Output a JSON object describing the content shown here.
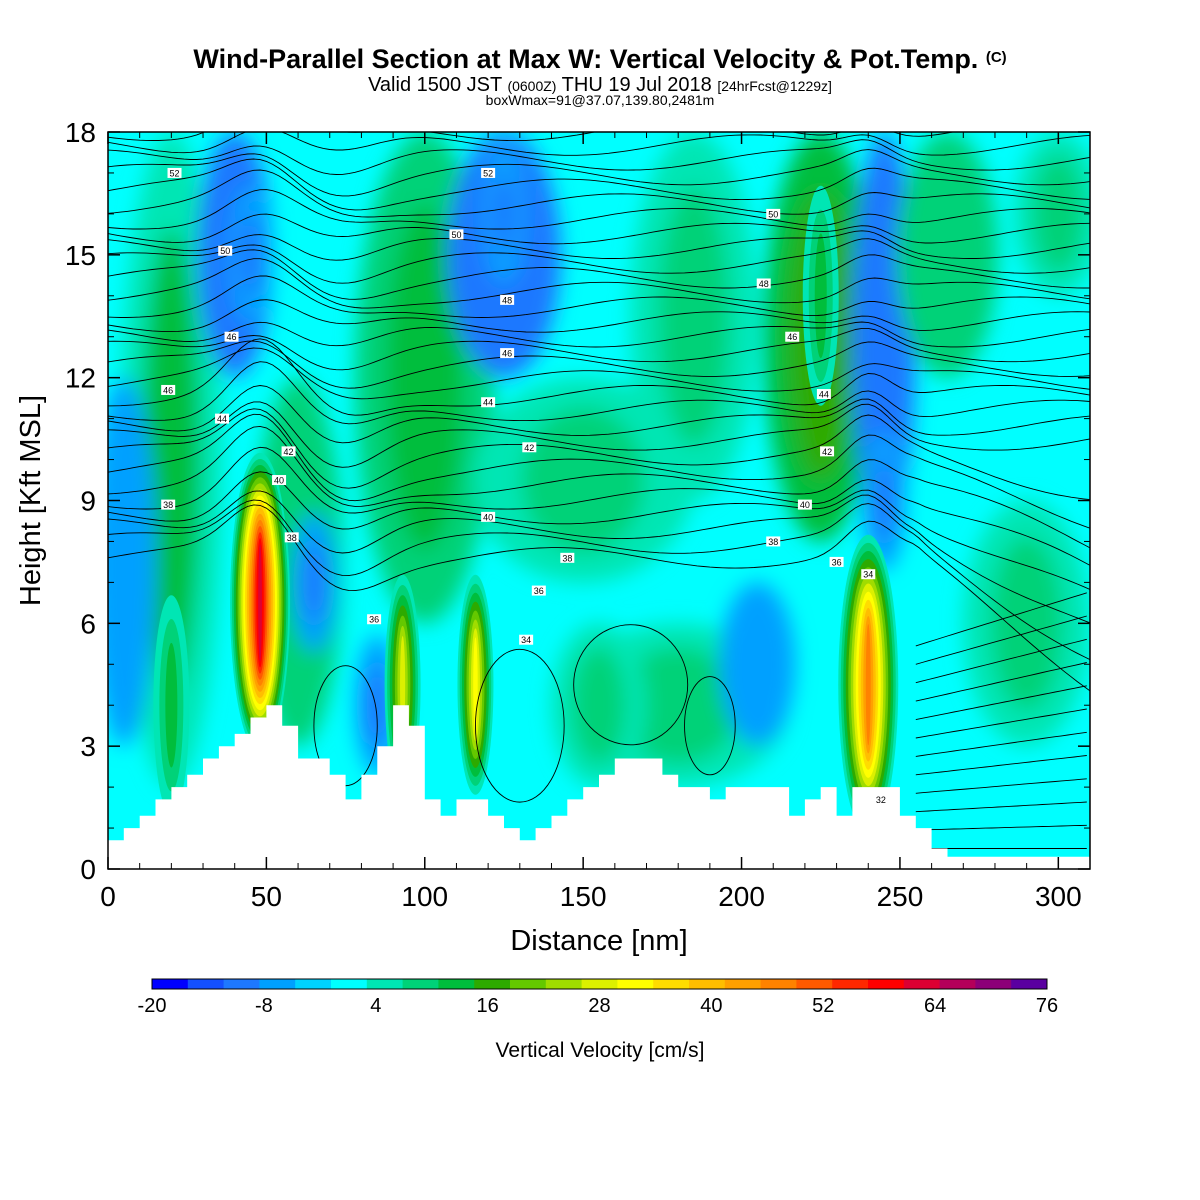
{
  "title": {
    "main": "Wind-Parallel Section at Max W: Vertical Velocity & Pot.Temp.",
    "main_tag": "(C)",
    "valid_prefix": "Valid 1500 JST",
    "valid_utc": "(0600Z)",
    "valid_date": "THU 19 Jul 2018",
    "forecast": "[24hrFcst@1229z]",
    "box": "boxWmax=91@37.07,139.80,2481m"
  },
  "chart_data": {
    "type": "heatmap",
    "xlabel": "Distance [nm]",
    "ylabel": "Height [Kft MSL]",
    "xlim": [
      0,
      310
    ],
    "ylim": [
      0,
      18
    ],
    "x_ticks": [
      0,
      50,
      100,
      150,
      200,
      250,
      300
    ],
    "y_ticks": [
      0,
      3,
      6,
      9,
      12,
      15,
      18
    ],
    "colorbar": {
      "label": "Vertical Velocity [cm/s]",
      "min": -20,
      "max": 76,
      "step": 4,
      "tick_labels": [
        "-20",
        "-8",
        "4",
        "16",
        "28",
        "40",
        "52",
        "64",
        "76"
      ],
      "colors": [
        "#0000ff",
        "#1450ff",
        "#1e78ff",
        "#00a0ff",
        "#00d2ff",
        "#00ffff",
        "#00e6b4",
        "#00d278",
        "#00be3c",
        "#2daa00",
        "#64c800",
        "#a0dc00",
        "#dcf000",
        "#ffff00",
        "#ffdc00",
        "#ffbe00",
        "#ffa000",
        "#ff8200",
        "#ff5a00",
        "#ff2800",
        "#ff0000",
        "#dc0032",
        "#b4005a",
        "#8c0078",
        "#5a00a0"
      ]
    },
    "terrain_kft": [
      [
        0,
        0.7
      ],
      [
        5,
        1.0
      ],
      [
        10,
        1.3
      ],
      [
        15,
        1.7
      ],
      [
        20,
        2.0
      ],
      [
        25,
        2.3
      ],
      [
        30,
        2.7
      ],
      [
        35,
        3.0
      ],
      [
        40,
        3.3
      ],
      [
        45,
        3.7
      ],
      [
        50,
        4.0
      ],
      [
        55,
        3.5
      ],
      [
        60,
        2.7
      ],
      [
        65,
        2.7
      ],
      [
        70,
        2.3
      ],
      [
        75,
        1.7
      ],
      [
        80,
        2.3
      ],
      [
        85,
        3.0
      ],
      [
        90,
        4.0
      ],
      [
        95,
        3.5
      ],
      [
        100,
        1.7
      ],
      [
        105,
        1.3
      ],
      [
        110,
        1.7
      ],
      [
        115,
        1.7
      ],
      [
        120,
        1.3
      ],
      [
        125,
        1.0
      ],
      [
        130,
        0.7
      ],
      [
        135,
        1.0
      ],
      [
        140,
        1.3
      ],
      [
        145,
        1.7
      ],
      [
        150,
        2.0
      ],
      [
        155,
        2.3
      ],
      [
        160,
        2.7
      ],
      [
        170,
        2.7
      ],
      [
        175,
        2.3
      ],
      [
        180,
        2.0
      ],
      [
        185,
        2.0
      ],
      [
        190,
        1.7
      ],
      [
        195,
        2.0
      ],
      [
        210,
        2.0
      ],
      [
        215,
        1.3
      ],
      [
        220,
        1.7
      ],
      [
        225,
        2.0
      ],
      [
        230,
        1.3
      ],
      [
        235,
        2.0
      ],
      [
        245,
        2.0
      ],
      [
        250,
        1.3
      ],
      [
        255,
        1.0
      ],
      [
        260,
        0.5
      ],
      [
        265,
        0.3
      ],
      [
        310,
        0.3
      ]
    ],
    "updraft_cores": [
      {
        "x": 48,
        "y": 6.5,
        "w_max": 64
      },
      {
        "x": 240,
        "y": 4.5,
        "w_max": 48
      },
      {
        "x": 93,
        "y": 4.5,
        "w_max": 28
      },
      {
        "x": 116,
        "y": 4.5,
        "w_max": 32
      },
      {
        "x": 20,
        "y": 4.0,
        "w_max": 12
      },
      {
        "x": 225,
        "y": 14.0,
        "w_max": 12
      }
    ],
    "downdraft_cores": [
      {
        "x": 45,
        "y": 15.0,
        "w_min": -12
      },
      {
        "x": 65,
        "y": 7.0,
        "w_min": -12
      },
      {
        "x": 85,
        "y": 4.0,
        "w_min": -12
      },
      {
        "x": 125,
        "y": 16.0,
        "w_min": -12
      },
      {
        "x": 245,
        "y": 9.0,
        "w_min": -12
      }
    ],
    "theta_contour_labels": [
      {
        "text": "52",
        "x": 21,
        "y": 17.0
      },
      {
        "text": "52",
        "x": 120,
        "y": 17.0
      },
      {
        "text": "50",
        "x": 37,
        "y": 15.1
      },
      {
        "text": "50",
        "x": 110,
        "y": 15.5
      },
      {
        "text": "50",
        "x": 210,
        "y": 16.0
      },
      {
        "text": "48",
        "x": 126,
        "y": 13.9
      },
      {
        "text": "48",
        "x": 207,
        "y": 14.3
      },
      {
        "text": "46",
        "x": 39,
        "y": 13.0
      },
      {
        "text": "46",
        "x": 126,
        "y": 12.6
      },
      {
        "text": "46",
        "x": 216,
        "y": 13.0
      },
      {
        "text": "46",
        "x": 19,
        "y": 11.7
      },
      {
        "text": "44",
        "x": 36,
        "y": 11.0
      },
      {
        "text": "44",
        "x": 120,
        "y": 11.4
      },
      {
        "text": "44",
        "x": 226,
        "y": 11.6
      },
      {
        "text": "42",
        "x": 57,
        "y": 10.2
      },
      {
        "text": "42",
        "x": 133,
        "y": 10.3
      },
      {
        "text": "42",
        "x": 227,
        "y": 10.2
      },
      {
        "text": "40",
        "x": 54,
        "y": 9.5
      },
      {
        "text": "40",
        "x": 120,
        "y": 8.6
      },
      {
        "text": "40",
        "x": 220,
        "y": 8.9
      },
      {
        "text": "38",
        "x": 19,
        "y": 8.9
      },
      {
        "text": "38",
        "x": 58,
        "y": 8.1
      },
      {
        "text": "38",
        "x": 145,
        "y": 7.6
      },
      {
        "text": "38",
        "x": 210,
        "y": 8.0
      },
      {
        "text": "36",
        "x": 84,
        "y": 6.1
      },
      {
        "text": "36",
        "x": 136,
        "y": 6.8
      },
      {
        "text": "36",
        "x": 230,
        "y": 7.5
      },
      {
        "text": "34",
        "x": 132,
        "y": 5.6
      },
      {
        "text": "34",
        "x": 240,
        "y": 7.2
      },
      {
        "text": "32",
        "x": 244,
        "y": 1.7
      }
    ]
  }
}
